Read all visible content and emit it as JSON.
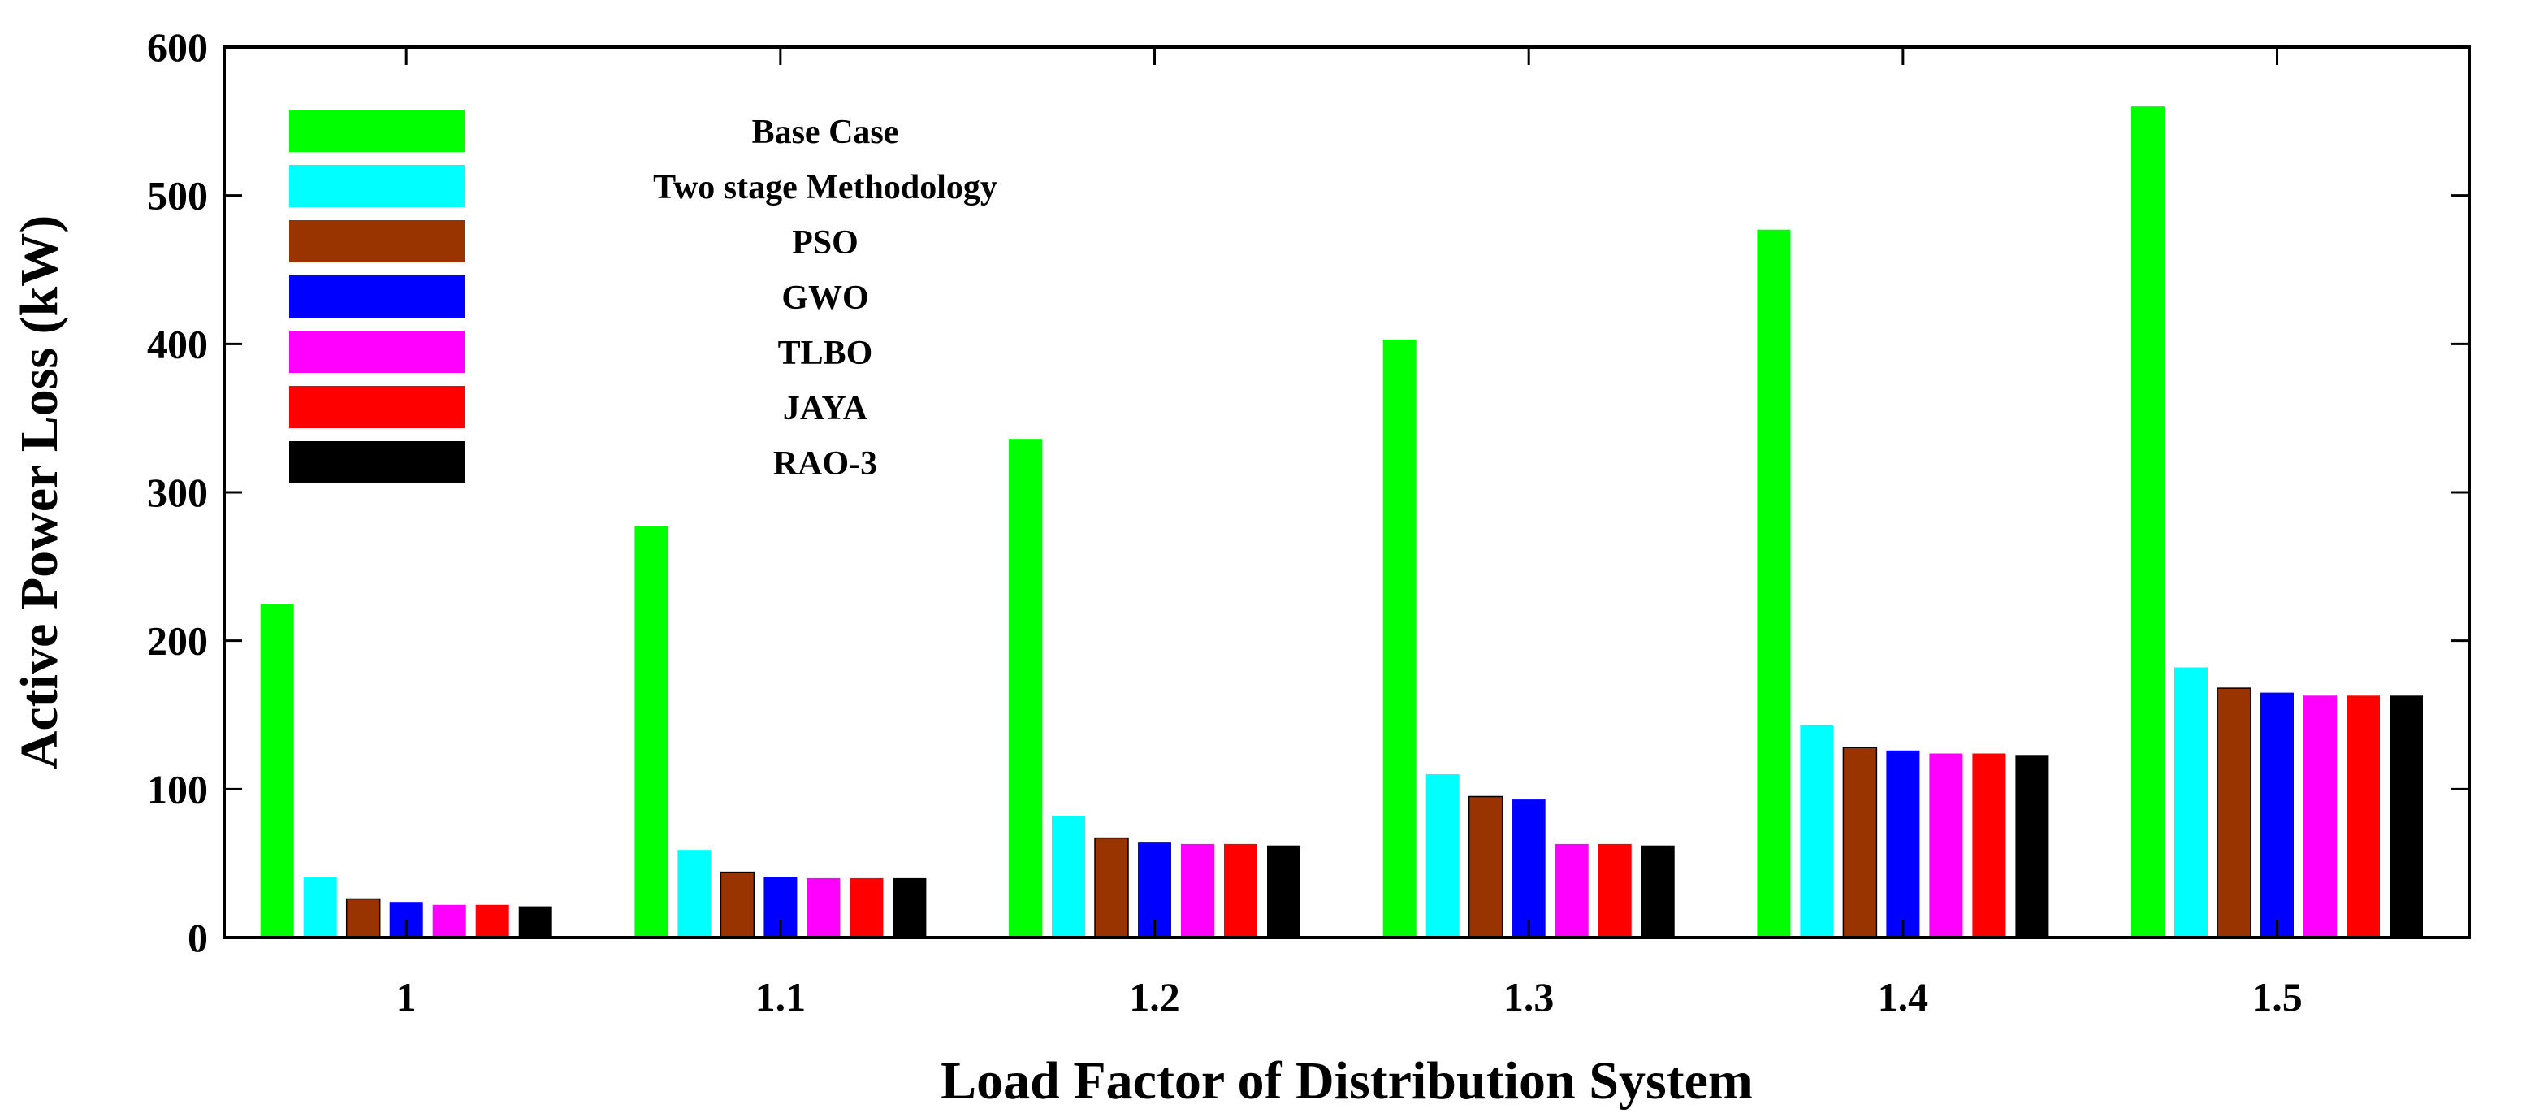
{
  "chart_data": {
    "type": "bar",
    "title": "",
    "xlabel": "Load Factor of Distribution System",
    "ylabel": "Active Power Loss (kW)",
    "ylim": [
      0,
      600
    ],
    "yticks": [
      "0",
      "100",
      "200",
      "300",
      "400",
      "500",
      "600"
    ],
    "grid": false,
    "legend_position": "top-left",
    "categories": [
      "1",
      "1.1",
      "1.2",
      "1.3",
      "1.4",
      "1.5"
    ],
    "series": [
      {
        "name": "Base Case",
        "color": "#00ff00",
        "values": [
          225,
          277,
          336,
          403,
          477,
          560
        ]
      },
      {
        "name": "Two stage Methodology",
        "color": "#00ffff",
        "values": [
          41,
          59,
          82,
          110,
          143,
          182
        ]
      },
      {
        "name": "PSO",
        "color": "#993300",
        "values": [
          26,
          44,
          67,
          95,
          128,
          168
        ]
      },
      {
        "name": "GWO",
        "color": "#0000ff",
        "values": [
          24,
          41,
          64,
          93,
          126,
          165
        ]
      },
      {
        "name": "TLBO",
        "color": "#ff00ff",
        "values": [
          22,
          40,
          63,
          63,
          124,
          163
        ]
      },
      {
        "name": "JAYA",
        "color": "#ff0000",
        "values": [
          22,
          40,
          63,
          63,
          124,
          163
        ]
      },
      {
        "name": "RAO-3",
        "color": "#000000",
        "values": [
          21,
          40,
          62,
          62,
          123,
          163
        ]
      }
    ]
  }
}
